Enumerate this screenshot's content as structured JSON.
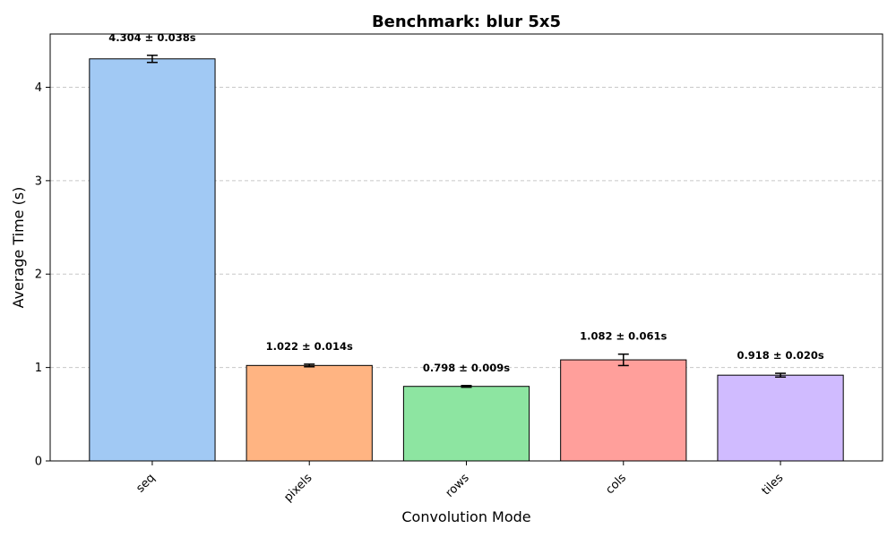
{
  "chart_data": {
    "type": "bar",
    "title": "Benchmark: blur 5x5",
    "xlabel": "Convolution Mode",
    "ylabel": "Average Time (s)",
    "categories": [
      "seq",
      "pixels",
      "rows",
      "cols",
      "tiles"
    ],
    "values": [
      4.304,
      1.022,
      0.798,
      1.082,
      0.918
    ],
    "errors": [
      0.038,
      0.014,
      0.009,
      0.061,
      0.02
    ],
    "data_labels": [
      "4.304 ± 0.038s",
      "1.022 ± 0.014s",
      "0.798 ± 0.009s",
      "1.082 ± 0.061s",
      "0.918 ± 0.020s"
    ],
    "colors": [
      "#a1c9f4",
      "#ffb482",
      "#8de5a1",
      "#ff9f9b",
      "#d0bbff"
    ],
    "ylim": [
      0,
      4.57
    ],
    "yticks": [
      0,
      1,
      2,
      3,
      4
    ],
    "grid": "y-dashed",
    "legend": "none"
  }
}
